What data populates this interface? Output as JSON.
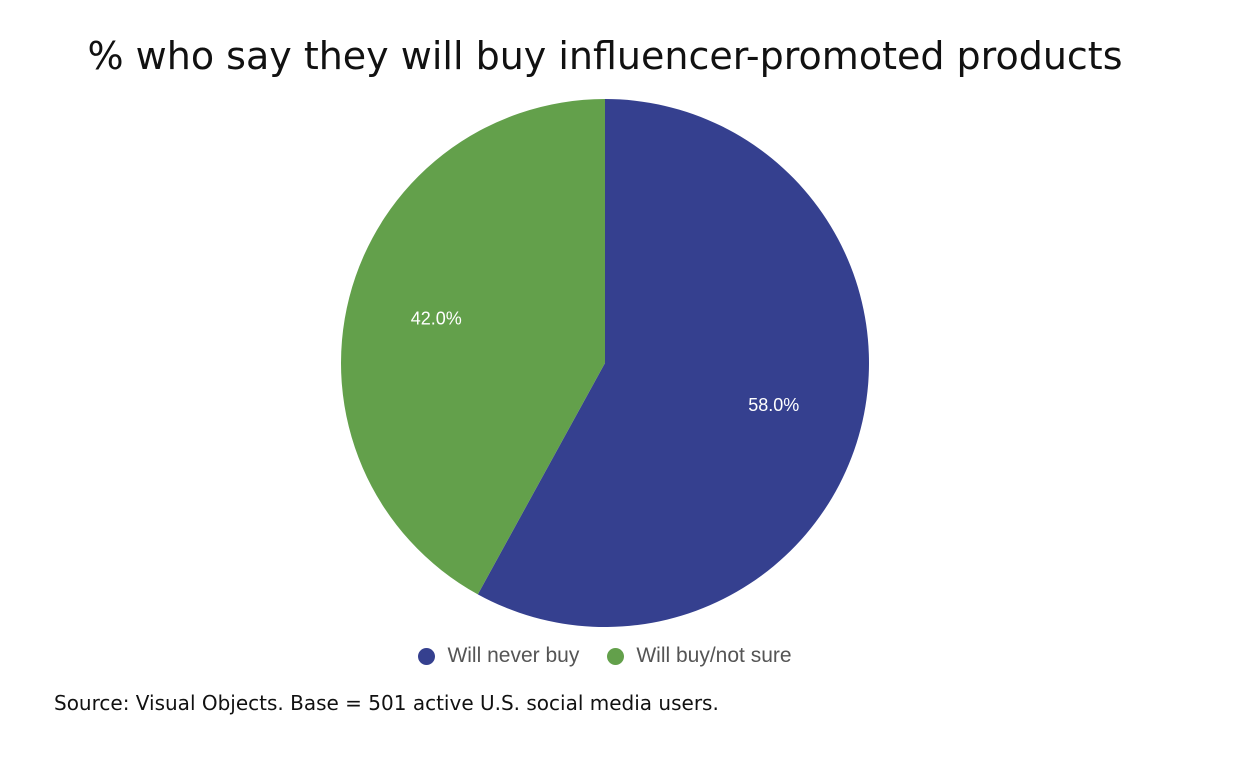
{
  "chart_data": {
    "type": "pie",
    "title": "% who say they will buy influencer-promoted products",
    "slices": [
      {
        "label": "Will never buy",
        "value": 58.0,
        "display": "58.0%",
        "color": "#35408F"
      },
      {
        "label": "Will buy/not sure",
        "value": 42.0,
        "display": "42.0%",
        "color": "#63A04B"
      }
    ],
    "legend_position": "bottom",
    "note": "Source: Visual Objects. Base = 501 active U.S. social media users."
  }
}
